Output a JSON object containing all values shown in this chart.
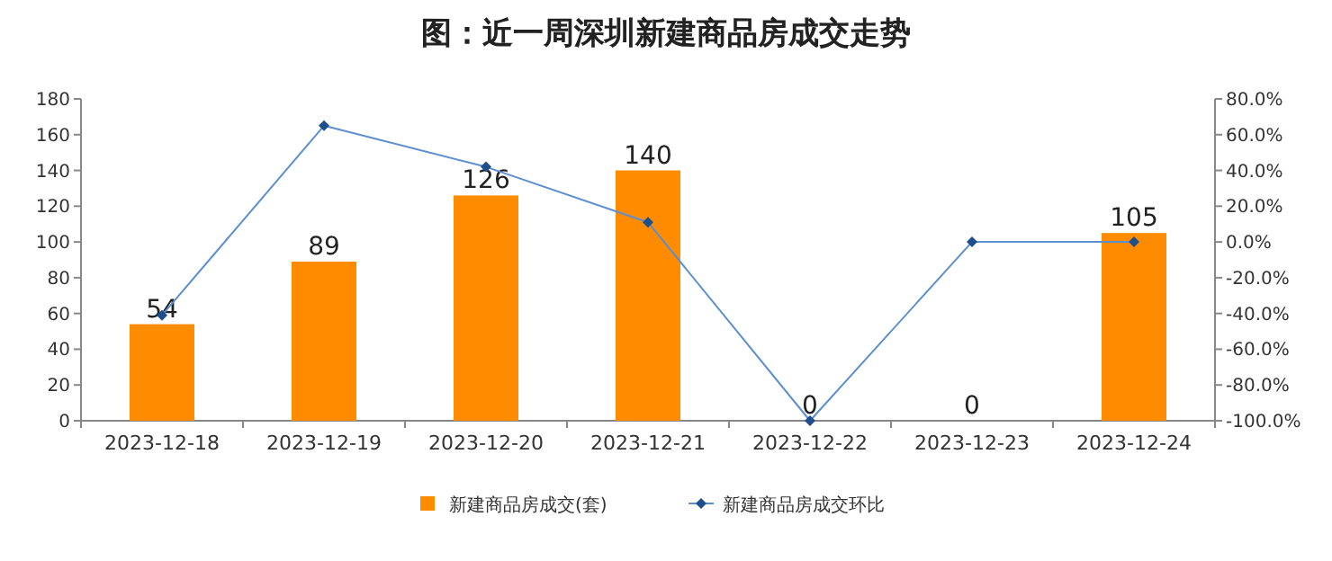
{
  "chart_data": {
    "type": "bar",
    "title": "图：近一周深圳新建商品房成交走势",
    "categories": [
      "2023-12-18",
      "2023-12-19",
      "2023-12-20",
      "2023-12-21",
      "2023-12-22",
      "2023-12-23",
      "2023-12-24"
    ],
    "series": [
      {
        "name": "新建商品房成交(套)",
        "color": "#ff8c00",
        "values": [
          54,
          89,
          126,
          140,
          0,
          0,
          105
        ],
        "value_labels": [
          "54",
          "89",
          "126",
          "140",
          "0",
          "0",
          "105"
        ]
      },
      {
        "name": "新建商品房成交环比",
        "type": "line",
        "axis": "y2",
        "color": "#5b8fd0",
        "marker": "diamond",
        "values": [
          -41,
          65,
          42,
          11,
          -100,
          0,
          0
        ]
      }
    ],
    "ylim": [
      0,
      180
    ],
    "yticks": [
      0,
      20,
      40,
      60,
      80,
      100,
      120,
      140,
      160,
      180
    ],
    "y2lim": [
      -100,
      80
    ],
    "y2ticks": [
      {
        "value": -100,
        "label": "-100.0%"
      },
      {
        "value": -80,
        "label": "-80.0%"
      },
      {
        "value": -60,
        "label": "-60.0%"
      },
      {
        "value": -40,
        "label": "-40.0%"
      },
      {
        "value": -20,
        "label": "-20.0%"
      },
      {
        "value": 0,
        "label": "0.0%"
      },
      {
        "value": 20,
        "label": "20.0%"
      },
      {
        "value": 40,
        "label": "40.0%"
      },
      {
        "value": 60,
        "label": "60.0%"
      },
      {
        "value": 80,
        "label": "80.0%"
      }
    ],
    "legend": "bottom",
    "grid": false
  }
}
